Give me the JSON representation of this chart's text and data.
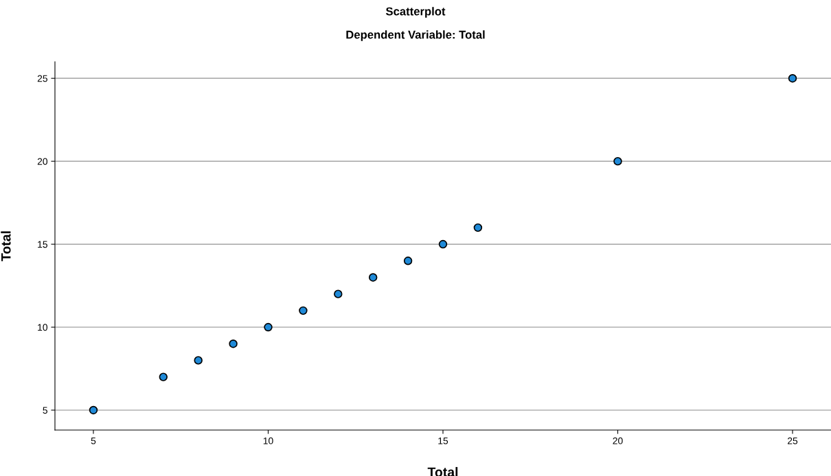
{
  "chart_data": {
    "type": "scatter",
    "title": "Scatterplot",
    "subtitle": "Dependent Variable: Total",
    "xlabel": "Total",
    "ylabel": "Total",
    "x": [
      5,
      7,
      8,
      9,
      10,
      11,
      12,
      13,
      14,
      15,
      16,
      20,
      25
    ],
    "series": [
      {
        "color": "#1f8ad8",
        "values": [
          5,
          7,
          8,
          9,
          10,
          11,
          12,
          13,
          14,
          15,
          16,
          20,
          25
        ]
      }
    ],
    "xlim": [
      3.9,
      26.1
    ],
    "ylim": [
      3.8,
      26
    ],
    "xticks": [
      5,
      10,
      15,
      20,
      25
    ],
    "yticks": [
      5,
      10,
      15,
      20,
      25
    ],
    "grid": "y",
    "marker": "circle"
  }
}
